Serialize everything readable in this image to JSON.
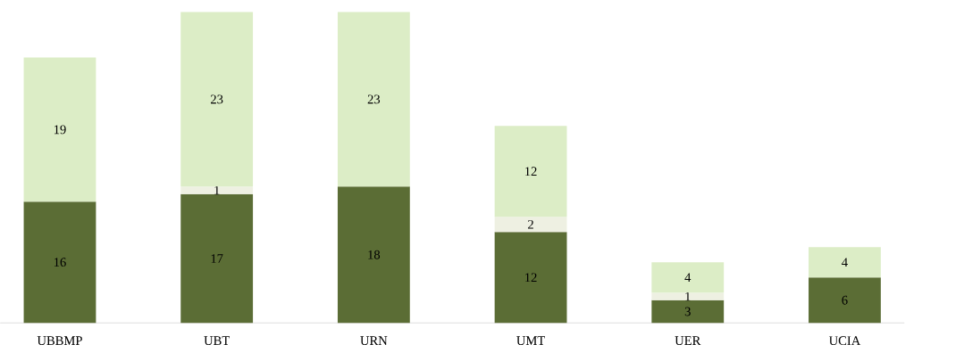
{
  "chart_data": {
    "type": "bar",
    "stacked": true,
    "data_labels": true,
    "categories": [
      "UBBMP",
      "UBT",
      "URN",
      "UMT",
      "UER",
      "UCIA"
    ],
    "series": [
      {
        "color": "#5b6d35",
        "values": [
          16,
          17,
          18,
          12,
          3,
          6
        ]
      },
      {
        "color": "#eef0e2",
        "values": [
          null,
          1,
          null,
          2,
          1,
          null
        ]
      },
      {
        "color": "#dcedc6",
        "values": [
          19,
          23,
          23,
          12,
          4,
          4
        ]
      }
    ]
  }
}
